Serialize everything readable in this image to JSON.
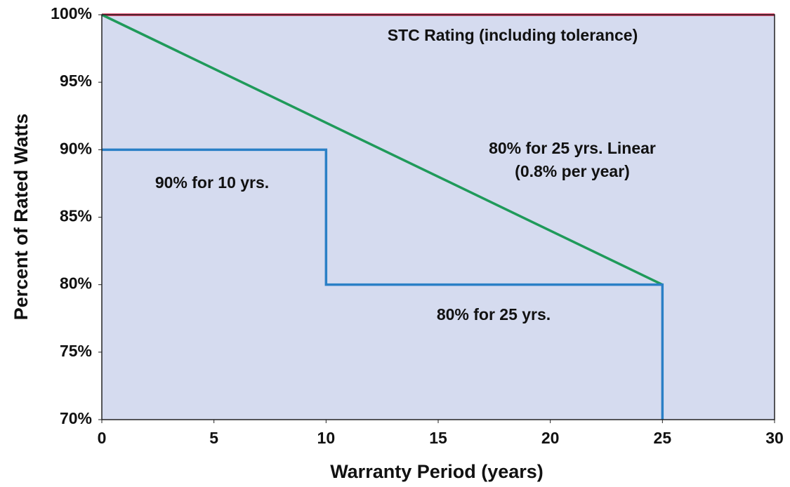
{
  "chart_data": {
    "type": "line",
    "y_label": "Percent of Rated Watts",
    "x_label": "Warranty Period (years)",
    "xlim": [
      0,
      30
    ],
    "xticks": [
      0,
      5,
      10,
      15,
      20,
      25,
      30
    ],
    "ylim": [
      70,
      100
    ],
    "yticks": [
      {
        "value": 70,
        "label": "70%"
      },
      {
        "value": 75,
        "label": "75%"
      },
      {
        "value": 80,
        "label": "80%"
      },
      {
        "value": 85,
        "label": "85%"
      },
      {
        "value": 90,
        "label": "90%"
      },
      {
        "value": 95,
        "label": "95%"
      },
      {
        "value": 100,
        "label": "100%"
      }
    ],
    "grid": false,
    "background": "#d5dbef",
    "series": [
      {
        "color": "#d9234f",
        "x": [
          0,
          30
        ],
        "values": [
          100,
          100
        ]
      },
      {
        "color": "#1f9a5a",
        "x": [
          0,
          25
        ],
        "values": [
          100,
          80
        ]
      },
      {
        "color": "#2b80c6",
        "x": [
          0,
          10,
          10,
          25,
          25
        ],
        "values": [
          90,
          90,
          80,
          80,
          70
        ]
      }
    ],
    "annotations": [
      "STC Rating (including tolerance)",
      "80% for 25 yrs. Linear",
      "(0.8% per year)",
      "90% for 10 yrs.",
      "80% for 25 yrs."
    ]
  }
}
